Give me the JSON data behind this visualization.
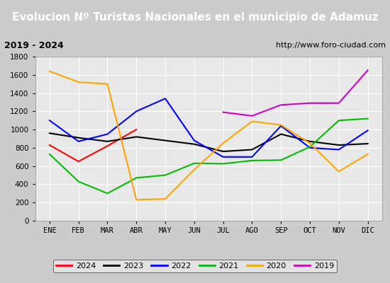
{
  "title": "Evolucion Nº Turistas Nacionales en el municipio de Adamuz",
  "subtitle_left": "2019 - 2024",
  "subtitle_right": "http://www.foro-ciudad.com",
  "months": [
    "ENE",
    "FEB",
    "MAR",
    "ABR",
    "MAY",
    "JUN",
    "JUL",
    "AGO",
    "SEP",
    "OCT",
    "NOV",
    "DIC"
  ],
  "series": {
    "2024": [
      830,
      650,
      820,
      1000,
      null,
      null,
      null,
      null,
      null,
      null,
      null,
      null
    ],
    "2023": [
      960,
      910,
      870,
      920,
      880,
      840,
      760,
      780,
      950,
      870,
      830,
      845
    ],
    "2022": [
      1100,
      870,
      950,
      1200,
      1340,
      880,
      700,
      700,
      1040,
      800,
      780,
      990
    ],
    "2021": [
      730,
      430,
      300,
      470,
      500,
      630,
      625,
      660,
      665,
      810,
      1100,
      1120
    ],
    "2020": [
      1640,
      1520,
      1500,
      230,
      240,
      560,
      850,
      1090,
      1050,
      850,
      540,
      730
    ],
    "2019": [
      null,
      null,
      null,
      null,
      null,
      null,
      1190,
      1150,
      1270,
      1290,
      1290,
      1650
    ]
  },
  "colors": {
    "2024": "#ff0000",
    "2023": "#000000",
    "2022": "#0000ff",
    "2021": "#00bb00",
    "2020": "#ffa500",
    "2019": "#cc00cc"
  },
  "ylim": [
    0,
    1800
  ],
  "yticks": [
    0,
    200,
    400,
    600,
    800,
    1000,
    1200,
    1400,
    1600,
    1800
  ],
  "title_bg_color": "#2e75b6",
  "title_text_color": "#ffffff",
  "plot_bg_color": "#e8e8e8",
  "grid_color": "#ffffff",
  "subtitle_bg_color": "#d0d0d0",
  "legend_bg_color": "#e8e8e8"
}
